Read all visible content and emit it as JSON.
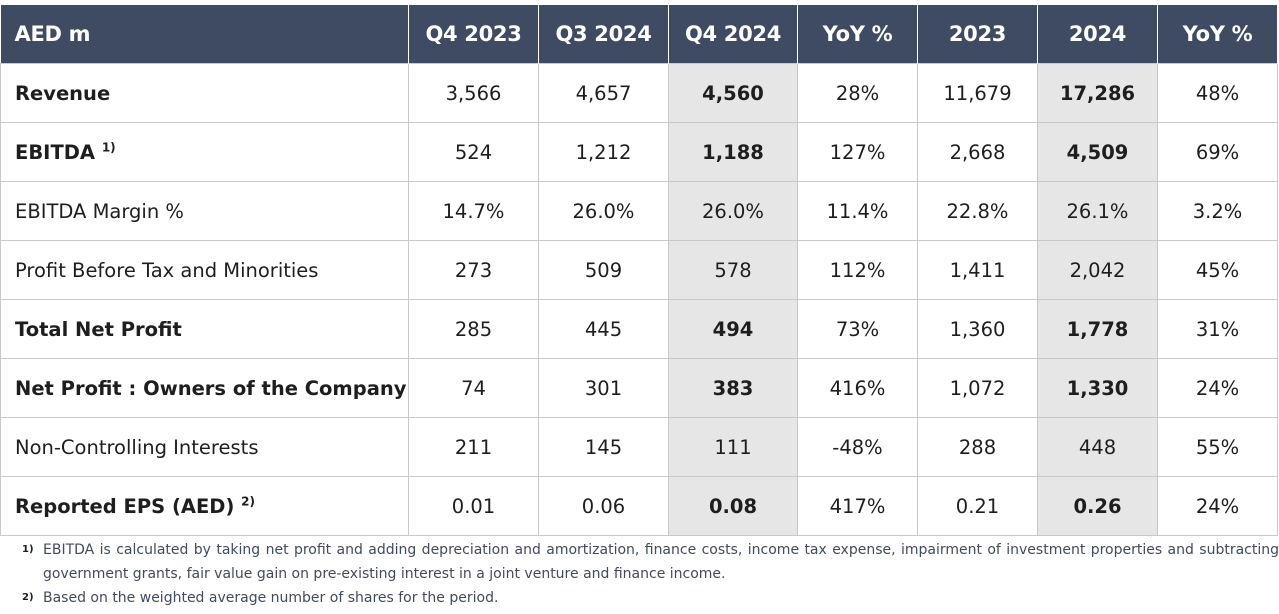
{
  "table": {
    "headers": [
      "AED m",
      "Q4 2023",
      "Q3 2024",
      "Q4 2024",
      "YoY %",
      "2023",
      "2024",
      "YoY %"
    ],
    "rows": [
      {
        "label": "Revenue",
        "footnote": "",
        "values": [
          "3,566",
          "4,657",
          "4,560",
          "28%",
          "11,679",
          "17,286",
          "48%"
        ]
      },
      {
        "label": "EBITDA",
        "footnote": "1)",
        "values": [
          "524",
          "1,212",
          "1,188",
          "127%",
          "2,668",
          "4,509",
          "69%"
        ]
      },
      {
        "label": "EBITDA Margin %",
        "footnote": "",
        "values": [
          "14.7%",
          "26.0%",
          "26.0%",
          "11.4%",
          "22.8%",
          "26.1%",
          "3.2%"
        ]
      },
      {
        "label": "Profit Before Tax and Minorities",
        "footnote": "",
        "values": [
          "273",
          "509",
          "578",
          "112%",
          "1,411",
          "2,042",
          "45%"
        ]
      },
      {
        "label": "Total Net Profit",
        "footnote": "",
        "values": [
          "285",
          "445",
          "494",
          "73%",
          "1,360",
          "1,778",
          "31%"
        ]
      },
      {
        "label": "Net Profit : Owners of the Company",
        "footnote": "",
        "values": [
          "74",
          "301",
          "383",
          "416%",
          "1,072",
          "1,330",
          "24%"
        ]
      },
      {
        "label": "Non-Controlling Interests",
        "footnote": "",
        "values": [
          "211",
          "145",
          "111",
          "-48%",
          "288",
          "448",
          "55%"
        ]
      },
      {
        "label": "Reported EPS (AED)",
        "footnote": "2)",
        "values": [
          "0.01",
          "0.06",
          "0.08",
          "417%",
          "0.21",
          "0.26",
          "24%"
        ]
      }
    ]
  },
  "footnotes": [
    {
      "num": "1)",
      "text": "EBITDA is calculated by taking net profit and adding depreciation and amortization, finance costs, income tax expense, impairment of investment properties and subtracting government grants, fair value gain on pre-existing interest in a joint venture and finance income."
    },
    {
      "num": "2)",
      "text": "Based on the weighted average number of shares for the period."
    }
  ],
  "colors": {
    "header_bg": "#3f4b63",
    "highlight_bg": "#e6e6e6",
    "footnote_text": "#3f4b63"
  }
}
